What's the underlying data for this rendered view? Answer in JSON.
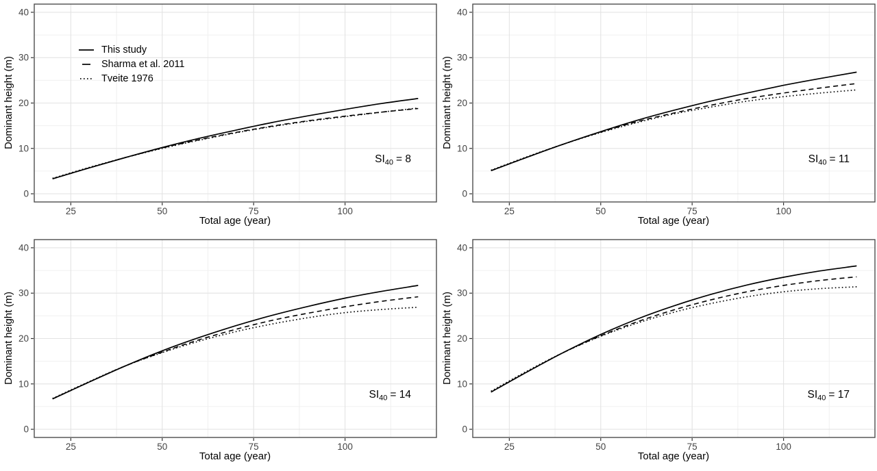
{
  "style": {
    "background": "#ffffff",
    "curve_color": "#000000",
    "grid_major": "#e3e3e3",
    "grid_minor": "#f0f0f0",
    "panel_border": "#4d4d4d",
    "tick_color": "#333333",
    "tick_label_color": "#444444"
  },
  "legend": {
    "position": "inside-top-left-of-first-panel",
    "items": [
      {
        "label": "This study",
        "linetype": "solid"
      },
      {
        "label": "Sharma et al. 2011",
        "linetype": "dashed"
      },
      {
        "label": "Tveite 1976",
        "linetype": "dotted"
      }
    ]
  },
  "chart_data": [
    {
      "type": "line",
      "si_label": {
        "base": "SI",
        "sub": "40",
        "rest": "= 8"
      },
      "xlabel": "Total age (year)",
      "ylabel": "Dominant height (m)",
      "xlim": [
        15,
        125
      ],
      "ylim": [
        -1.8,
        41.8
      ],
      "x_ticks": [
        25,
        50,
        75,
        100
      ],
      "y_ticks": [
        0,
        10,
        20,
        30,
        40
      ],
      "x_minor": [
        37.5,
        62.5,
        87.5,
        112.5
      ],
      "y_minor": [
        5,
        15,
        25,
        35
      ],
      "grid": true,
      "x": [
        20,
        30,
        40,
        50,
        60,
        70,
        80,
        90,
        100,
        110,
        120
      ],
      "series": [
        {
          "name": "This study",
          "linetype": "solid",
          "values": [
            3.3,
            5.7,
            8.0,
            10.2,
            12.2,
            14.0,
            15.7,
            17.2,
            18.6,
            19.9,
            21.0
          ]
        },
        {
          "name": "Sharma et al. 2011",
          "linetype": "dashed",
          "values": [
            3.3,
            5.7,
            8.0,
            10.1,
            11.9,
            13.5,
            14.9,
            16.1,
            17.1,
            18.0,
            18.8
          ]
        },
        {
          "name": "Tveite 1976",
          "linetype": "dotted",
          "values": [
            3.4,
            5.8,
            8.0,
            10.0,
            11.8,
            13.4,
            14.8,
            16.0,
            17.0,
            18.0,
            18.9
          ]
        }
      ]
    },
    {
      "type": "line",
      "si_label": {
        "base": "SI",
        "sub": "40",
        "rest": "= 11"
      },
      "xlabel": "Total age (year)",
      "ylabel": "Dominant height (m)",
      "xlim": [
        15,
        125
      ],
      "ylim": [
        -1.8,
        41.8
      ],
      "x_ticks": [
        25,
        50,
        75,
        100
      ],
      "y_ticks": [
        0,
        10,
        20,
        30,
        40
      ],
      "x_minor": [
        37.5,
        62.5,
        87.5,
        112.5
      ],
      "y_minor": [
        5,
        15,
        25,
        35
      ],
      "grid": true,
      "x": [
        20,
        30,
        40,
        50,
        60,
        70,
        80,
        90,
        100,
        110,
        120
      ],
      "series": [
        {
          "name": "This study",
          "linetype": "solid",
          "values": [
            5.1,
            8.1,
            11.0,
            13.7,
            16.2,
            18.4,
            20.4,
            22.2,
            23.9,
            25.4,
            26.8
          ]
        },
        {
          "name": "Sharma et al. 2011",
          "linetype": "dashed",
          "values": [
            5.1,
            8.1,
            11.0,
            13.6,
            15.9,
            17.8,
            19.5,
            21.0,
            22.2,
            23.3,
            24.3
          ]
        },
        {
          "name": "Tveite 1976",
          "linetype": "dotted",
          "values": [
            5.2,
            8.2,
            11.0,
            13.5,
            15.7,
            17.6,
            19.1,
            20.4,
            21.4,
            22.2,
            22.9
          ]
        }
      ]
    },
    {
      "type": "line",
      "si_label": {
        "base": "SI",
        "sub": "40",
        "rest": "= 14"
      },
      "xlabel": "Total age (year)",
      "ylabel": "Dominant height (m)",
      "xlim": [
        15,
        125
      ],
      "ylim": [
        -1.8,
        41.8
      ],
      "x_ticks": [
        25,
        50,
        75,
        100
      ],
      "y_ticks": [
        0,
        10,
        20,
        30,
        40
      ],
      "x_minor": [
        37.5,
        62.5,
        87.5,
        112.5
      ],
      "y_minor": [
        5,
        15,
        25,
        35
      ],
      "grid": true,
      "x": [
        20,
        30,
        40,
        50,
        60,
        70,
        80,
        90,
        100,
        110,
        120
      ],
      "series": [
        {
          "name": "This study",
          "linetype": "solid",
          "values": [
            6.7,
            10.4,
            14.0,
            17.3,
            20.2,
            22.8,
            25.1,
            27.1,
            28.9,
            30.4,
            31.7
          ]
        },
        {
          "name": "Sharma et al. 2011",
          "linetype": "dashed",
          "values": [
            6.7,
            10.4,
            14.0,
            17.0,
            19.7,
            22.0,
            24.0,
            25.6,
            27.0,
            28.2,
            29.2
          ]
        },
        {
          "name": "Tveite 1976",
          "linetype": "dotted",
          "values": [
            6.8,
            10.5,
            14.0,
            16.9,
            19.4,
            21.5,
            23.2,
            24.6,
            25.7,
            26.4,
            26.9
          ]
        }
      ]
    },
    {
      "type": "line",
      "si_label": {
        "base": "SI",
        "sub": "40",
        "rest": "= 17"
      },
      "xlabel": "Total age (year)",
      "ylabel": "Dominant height (m)",
      "xlim": [
        15,
        125
      ],
      "ylim": [
        -1.8,
        41.8
      ],
      "x_ticks": [
        25,
        50,
        75,
        100
      ],
      "y_ticks": [
        0,
        10,
        20,
        30,
        40
      ],
      "x_minor": [
        37.5,
        62.5,
        87.5,
        112.5
      ],
      "y_minor": [
        5,
        15,
        25,
        35
      ],
      "grid": true,
      "x": [
        20,
        30,
        40,
        50,
        60,
        70,
        80,
        90,
        100,
        110,
        120
      ],
      "series": [
        {
          "name": "This study",
          "linetype": "solid",
          "values": [
            8.2,
            12.7,
            17.0,
            20.9,
            24.3,
            27.2,
            29.7,
            31.8,
            33.5,
            34.9,
            36.0
          ]
        },
        {
          "name": "Sharma et al. 2011",
          "linetype": "dashed",
          "values": [
            8.2,
            12.7,
            17.0,
            20.6,
            23.7,
            26.3,
            28.5,
            30.3,
            31.7,
            32.8,
            33.6
          ]
        },
        {
          "name": "Tveite 1976",
          "linetype": "dotted",
          "values": [
            8.4,
            12.9,
            17.0,
            20.5,
            23.4,
            25.8,
            27.7,
            29.2,
            30.3,
            31.0,
            31.4
          ]
        }
      ]
    }
  ]
}
